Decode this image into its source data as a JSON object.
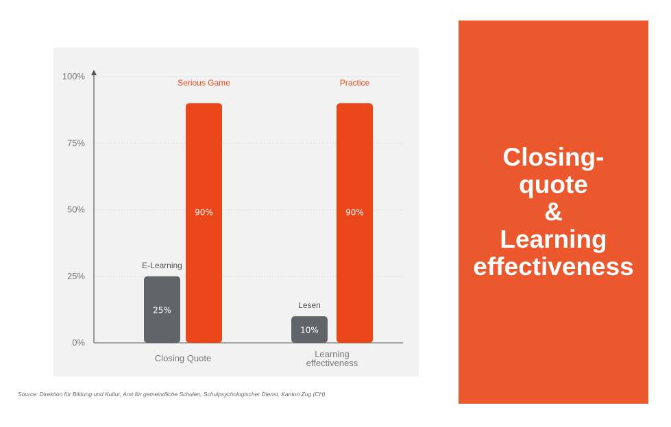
{
  "chart_data": {
    "type": "bar",
    "categories": [
      "Closing Quote",
      "Learning\neffectiveness"
    ],
    "series": [
      {
        "name": "E-Learning / Lesen",
        "bar_labels": [
          "E-Learning",
          "Lesen"
        ],
        "values": [
          25,
          10
        ],
        "color": "#61656a"
      },
      {
        "name": "Serious Game / Practice",
        "bar_labels": [
          "Serious Game",
          "Practice"
        ],
        "values": [
          90,
          90
        ],
        "color": "#ea4619"
      }
    ],
    "data_labels": [
      [
        "25%",
        "10%"
      ],
      [
        "90%",
        "90%"
      ]
    ],
    "yticks": [
      "0%",
      "25%",
      "50%",
      "75%",
      "100%"
    ],
    "ylim": [
      0,
      100
    ],
    "grid": true,
    "xlabel": "",
    "ylabel": "",
    "title": ""
  },
  "source": "Source: Direktion für Bildung und Kultur, Amt für gemeindliche Schulen, Schulpsychologischer Dienst, Kanton Zug (CH)",
  "side_panel": {
    "title": "Closing-\nquote\n&\nLearning\neffectiveness",
    "color": "#ec582d"
  }
}
